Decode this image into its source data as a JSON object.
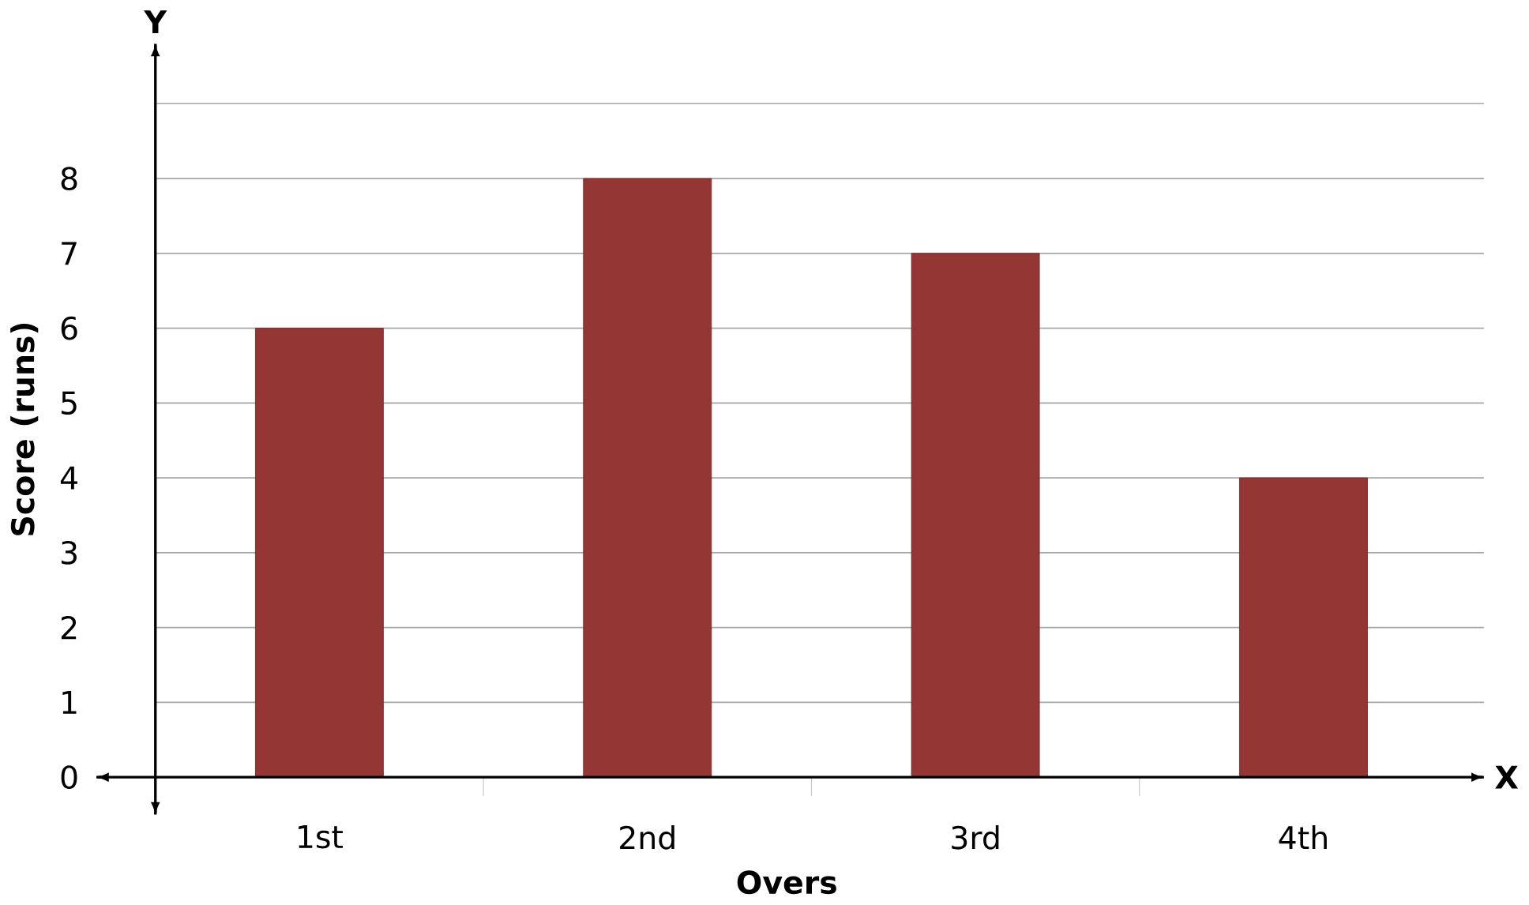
{
  "chart_data": {
    "type": "bar",
    "xlabel": "Overs",
    "ylabel": "Score (runs)",
    "categories": [
      "1st",
      "2nd",
      "3rd",
      "4th"
    ],
    "values": [
      6,
      8,
      7,
      4
    ],
    "color": "#943634",
    "ylim": [
      -0.5,
      9.8
    ],
    "yticks": [
      {
        "value": 0,
        "label": "0"
      },
      1,
      2,
      3,
      4,
      5,
      6,
      7,
      8,
      {
        "value": 9,
        "label": null
      }
    ],
    "grid": "y",
    "annotations": [
      "Y",
      "X"
    ]
  }
}
